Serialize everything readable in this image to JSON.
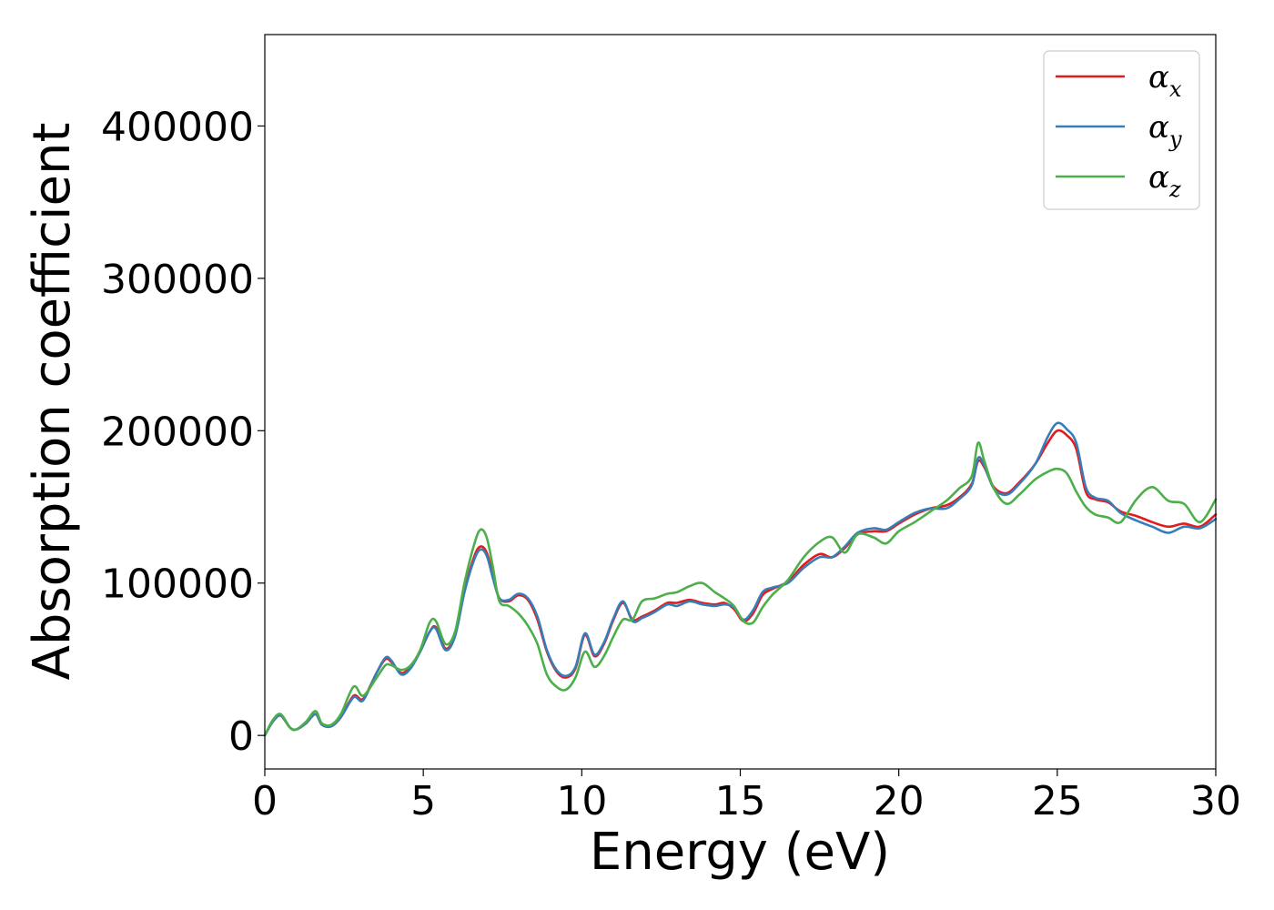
{
  "chart_data": {
    "type": "line",
    "title": "",
    "xlabel": "Energy (eV)",
    "ylabel": "Absorption coefficient",
    "xlim": [
      0,
      30
    ],
    "ylim": [
      -22000,
      460000
    ],
    "xticks": [
      0,
      5,
      10,
      15,
      20,
      25,
      30
    ],
    "yticks": [
      0,
      100000,
      200000,
      300000,
      400000
    ],
    "grid": false,
    "legend_position": "top-right",
    "series": [
      {
        "name": "α",
        "subscript": "x",
        "color": "#e41a1c",
        "x": [
          0,
          0.25,
          0.5,
          0.8,
          1.0,
          1.3,
          1.6,
          1.8,
          2.1,
          2.4,
          2.8,
          3.1,
          3.5,
          3.8,
          4.0,
          4.3,
          4.6,
          4.9,
          5.2,
          5.4,
          5.7,
          6.0,
          6.3,
          6.6,
          6.8,
          7.0,
          7.2,
          7.4,
          7.7,
          8.0,
          8.3,
          8.6,
          8.9,
          9.2,
          9.5,
          9.8,
          10.1,
          10.4,
          10.7,
          11.0,
          11.3,
          11.6,
          11.9,
          12.3,
          12.7,
          13.0,
          13.4,
          13.8,
          14.2,
          14.5,
          14.8,
          15.1,
          15.4,
          15.7,
          16.0,
          16.5,
          17.0,
          17.5,
          17.9,
          18.3,
          18.7,
          19.2,
          19.6,
          20.0,
          20.5,
          21.0,
          21.5,
          21.9,
          22.3,
          22.5,
          22.7,
          23.0,
          23.4,
          23.8,
          24.3,
          24.7,
          25.0,
          25.3,
          25.6,
          25.9,
          26.2,
          26.6,
          27.0,
          27.5,
          28.0,
          28.5,
          29.0,
          29.5,
          30.0
        ],
        "y": [
          0,
          9000,
          13000,
          5000,
          4000,
          8000,
          14000,
          7000,
          6000,
          12000,
          26000,
          24000,
          40000,
          50000,
          48000,
          41000,
          45000,
          55000,
          68000,
          71000,
          57000,
          66000,
          95000,
          117000,
          124000,
          120000,
          105000,
          90000,
          88000,
          92000,
          89000,
          76000,
          55000,
          42000,
          38000,
          44000,
          66000,
          52000,
          60000,
          76000,
          87000,
          76000,
          78000,
          82000,
          87000,
          87000,
          89000,
          87000,
          86000,
          87000,
          83000,
          75000,
          80000,
          92000,
          96000,
          101000,
          112000,
          119000,
          117000,
          123000,
          132000,
          134000,
          134000,
          139000,
          145000,
          149000,
          151000,
          156000,
          165000,
          180000,
          176000,
          163000,
          159000,
          166000,
          178000,
          192000,
          200000,
          197000,
          188000,
          160000,
          155000,
          153000,
          147000,
          144000,
          140000,
          137000,
          139000,
          137000,
          145000
        ]
      },
      {
        "name": "α",
        "subscript": "y",
        "color": "#377eb8",
        "x": [
          0,
          0.25,
          0.5,
          0.8,
          1.0,
          1.3,
          1.6,
          1.8,
          2.1,
          2.4,
          2.8,
          3.1,
          3.5,
          3.8,
          4.0,
          4.3,
          4.6,
          4.9,
          5.2,
          5.4,
          5.7,
          6.0,
          6.3,
          6.6,
          6.8,
          7.0,
          7.2,
          7.4,
          7.7,
          8.0,
          8.3,
          8.6,
          8.9,
          9.2,
          9.5,
          9.8,
          10.1,
          10.4,
          10.7,
          11.0,
          11.3,
          11.6,
          11.9,
          12.3,
          12.7,
          13.0,
          13.4,
          13.8,
          14.2,
          14.5,
          14.8,
          15.1,
          15.4,
          15.7,
          16.0,
          16.5,
          17.0,
          17.5,
          17.9,
          18.3,
          18.7,
          19.2,
          19.6,
          20.0,
          20.5,
          21.0,
          21.5,
          21.9,
          22.3,
          22.5,
          22.7,
          23.0,
          23.4,
          23.8,
          24.3,
          24.7,
          25.0,
          25.3,
          25.6,
          25.9,
          26.2,
          26.6,
          27.0,
          27.5,
          28.0,
          28.5,
          29.0,
          29.5,
          30.0
        ],
        "y": [
          0,
          9000,
          13000,
          5000,
          4000,
          8000,
          14000,
          7000,
          6000,
          12000,
          25000,
          23000,
          40000,
          51000,
          49000,
          40000,
          44000,
          55000,
          68000,
          70000,
          56000,
          65000,
          94000,
          115000,
          122000,
          118000,
          103000,
          90000,
          89000,
          93000,
          90000,
          78000,
          56000,
          43000,
          39000,
          45000,
          67000,
          53000,
          61000,
          77000,
          88000,
          75000,
          77000,
          81000,
          86000,
          85000,
          88000,
          86000,
          85000,
          86000,
          84000,
          76000,
          82000,
          94000,
          97000,
          100000,
          110000,
          117000,
          117000,
          124000,
          133000,
          136000,
          135000,
          140000,
          146000,
          149000,
          149000,
          155000,
          164000,
          182000,
          177000,
          162000,
          158000,
          165000,
          178000,
          196000,
          205000,
          201000,
          192000,
          163000,
          156000,
          154000,
          146000,
          141000,
          137000,
          133000,
          137000,
          136000,
          142000
        ]
      },
      {
        "name": "α",
        "subscript": "z",
        "color": "#4daf4a",
        "x": [
          0,
          0.25,
          0.5,
          0.8,
          1.0,
          1.3,
          1.6,
          1.8,
          2.1,
          2.4,
          2.8,
          3.1,
          3.5,
          3.8,
          4.0,
          4.3,
          4.6,
          4.9,
          5.2,
          5.4,
          5.7,
          6.0,
          6.3,
          6.6,
          6.8,
          7.0,
          7.2,
          7.4,
          7.7,
          8.0,
          8.3,
          8.6,
          8.9,
          9.2,
          9.5,
          9.8,
          10.1,
          10.4,
          10.7,
          11.0,
          11.3,
          11.6,
          11.9,
          12.3,
          12.7,
          13.0,
          13.4,
          13.8,
          14.2,
          14.5,
          14.8,
          15.1,
          15.4,
          15.7,
          16.0,
          16.5,
          17.0,
          17.5,
          17.9,
          18.3,
          18.7,
          19.2,
          19.6,
          20.0,
          20.5,
          21.0,
          21.5,
          21.9,
          22.3,
          22.5,
          22.7,
          23.0,
          23.4,
          23.8,
          24.3,
          24.7,
          25.0,
          25.3,
          25.6,
          25.9,
          26.2,
          26.6,
          27.0,
          27.5,
          28.0,
          28.5,
          29.0,
          29.5,
          30.0
        ],
        "y": [
          0,
          10000,
          14000,
          5000,
          4000,
          9000,
          16000,
          8000,
          7000,
          14000,
          32000,
          26000,
          37000,
          46000,
          46000,
          43000,
          46000,
          56000,
          74000,
          75000,
          60000,
          68000,
          100000,
          125000,
          135000,
          130000,
          110000,
          88000,
          85000,
          80000,
          72000,
          60000,
          40000,
          32000,
          30000,
          38000,
          55000,
          45000,
          52000,
          65000,
          76000,
          76000,
          88000,
          90000,
          93000,
          94000,
          98000,
          100000,
          94000,
          90000,
          85000,
          75000,
          74000,
          84000,
          92000,
          102000,
          117000,
          127000,
          130000,
          120000,
          132000,
          130000,
          126000,
          134000,
          140000,
          147000,
          154000,
          162000,
          170000,
          192000,
          180000,
          162000,
          152000,
          158000,
          168000,
          173000,
          175000,
          172000,
          160000,
          150000,
          145000,
          143000,
          140000,
          155000,
          163000,
          154000,
          152000,
          140000,
          155000
        ]
      }
    ]
  }
}
